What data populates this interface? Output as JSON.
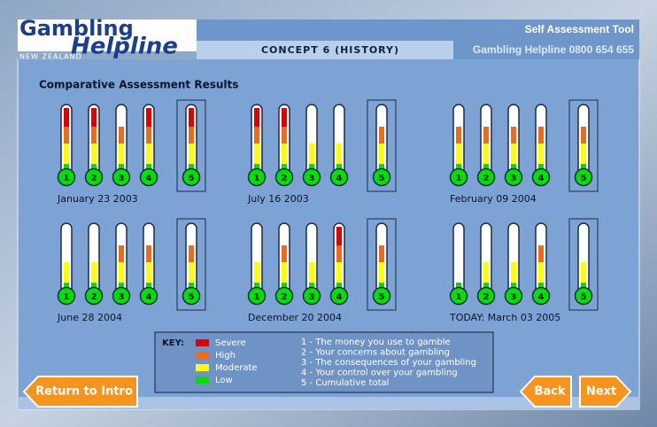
{
  "header": {
    "logo_line1": "Gambling",
    "logo_line2": "Helpline",
    "logo_line3": "NEW ZEALAND",
    "tool_title": "Self Assessment Tool",
    "concept": "CONCEPT 6 (HISTORY)",
    "phone": "Gambling Helpline 0800 654 655"
  },
  "section_title": "Comparative Assessment Results",
  "groups": [
    {
      "date": "January 23 2003",
      "gauges": [
        {
          "label": "1",
          "level": 4
        },
        {
          "label": "2",
          "level": 4
        },
        {
          "label": "3",
          "level": 3
        },
        {
          "label": "4",
          "level": 4
        },
        {
          "label": "5",
          "level": 4
        }
      ]
    },
    {
      "date": "July 16 2003",
      "gauges": [
        {
          "label": "1",
          "level": 4
        },
        {
          "label": "2",
          "level": 4
        },
        {
          "label": "3",
          "level": 2
        },
        {
          "label": "4",
          "level": 2
        },
        {
          "label": "5",
          "level": 3
        }
      ]
    },
    {
      "date": "February 09 2004",
      "gauges": [
        {
          "label": "1",
          "level": 3
        },
        {
          "label": "2",
          "level": 3
        },
        {
          "label": "3",
          "level": 3
        },
        {
          "label": "4",
          "level": 3
        },
        {
          "label": "5",
          "level": 3
        }
      ]
    },
    {
      "date": "June 28 2004",
      "gauges": [
        {
          "label": "1",
          "level": 2
        },
        {
          "label": "2",
          "level": 2
        },
        {
          "label": "3",
          "level": 3
        },
        {
          "label": "4",
          "level": 3
        },
        {
          "label": "5",
          "level": 3
        }
      ]
    },
    {
      "date": "December 20 2004",
      "gauges": [
        {
          "label": "1",
          "level": 2
        },
        {
          "label": "2",
          "level": 3
        },
        {
          "label": "3",
          "level": 2
        },
        {
          "label": "4",
          "level": 4
        },
        {
          "label": "5",
          "level": 3
        }
      ]
    },
    {
      "date": "TODAY: March 03 2005",
      "gauges": [
        {
          "label": "1",
          "level": 1
        },
        {
          "label": "2",
          "level": 2
        },
        {
          "label": "3",
          "level": 2
        },
        {
          "label": "4",
          "level": 3
        },
        {
          "label": "5",
          "level": 2
        }
      ]
    }
  ],
  "key": {
    "title": "KEY:",
    "levels": [
      {
        "label": "Low",
        "color": "#00e000"
      },
      {
        "label": "Moderate",
        "color": "#ffff00"
      },
      {
        "label": "High",
        "color": "#f06a1c"
      },
      {
        "label": "Severe",
        "color": "#e00000"
      }
    ],
    "items": [
      "1 - The money you use to gamble",
      "2 - Your concerns about gambling",
      "3 - The consequences of your gambling",
      "4 - Your control over your gambling",
      "5 - Cumulative total"
    ]
  },
  "buttons": {
    "intro": "Return to Intro",
    "back": "Back",
    "next": "Next"
  }
}
